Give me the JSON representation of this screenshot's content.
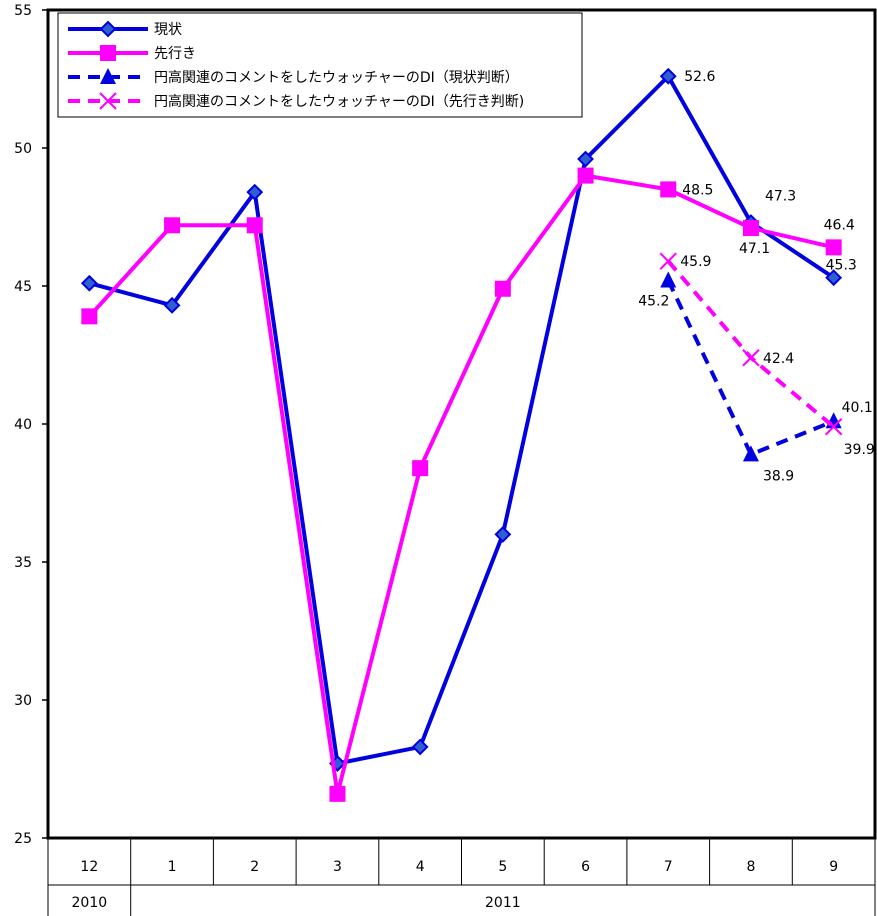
{
  "chart_data": {
    "type": "line",
    "title": "",
    "xlabel": "",
    "ylabel": "",
    "ylim": [
      25,
      55
    ],
    "yticks": [
      25,
      30,
      35,
      40,
      45,
      50,
      55
    ],
    "categories": [
      "12",
      "1",
      "2",
      "3",
      "4",
      "5",
      "6",
      "7",
      "8",
      "9"
    ],
    "year_groups": [
      {
        "label": "2010",
        "span": 1
      },
      {
        "label": "2011",
        "span": 9
      }
    ],
    "grid": false,
    "legend_position": "top-left",
    "series": [
      {
        "name": "現状",
        "color": "#0000e0",
        "dash": false,
        "marker": "diamond",
        "values": [
          45.1,
          44.3,
          48.4,
          27.7,
          28.3,
          36.0,
          49.6,
          52.6,
          47.3,
          45.3
        ],
        "data_labels": [
          null,
          null,
          null,
          null,
          null,
          null,
          null,
          "52.6",
          "47.3",
          "45.3"
        ]
      },
      {
        "name": "先行き",
        "color": "#ff00ff",
        "dash": false,
        "marker": "square",
        "values": [
          43.9,
          47.2,
          47.2,
          26.6,
          38.4,
          44.9,
          49.0,
          48.5,
          47.1,
          46.4
        ],
        "data_labels": [
          null,
          null,
          null,
          null,
          null,
          null,
          null,
          "48.5",
          "47.1",
          "46.4"
        ]
      },
      {
        "name": "円高関連のコメントをしたウォッチャーのDI（現状判断）",
        "color": "#0000e0",
        "dash": true,
        "marker": "triangle",
        "values": [
          null,
          null,
          null,
          null,
          null,
          null,
          null,
          45.2,
          38.9,
          40.1
        ],
        "data_labels": [
          null,
          null,
          null,
          null,
          null,
          null,
          null,
          "45.2",
          "38.9",
          "40.1"
        ]
      },
      {
        "name": "円高関連のコメントをしたウォッチャーのDI（先行き判断)",
        "color": "#ff00ff",
        "dash": true,
        "marker": "x",
        "values": [
          null,
          null,
          null,
          null,
          null,
          null,
          null,
          45.9,
          42.4,
          39.9
        ],
        "data_labels": [
          null,
          null,
          null,
          null,
          null,
          null,
          null,
          "45.9",
          "42.4",
          "39.9"
        ]
      }
    ]
  }
}
